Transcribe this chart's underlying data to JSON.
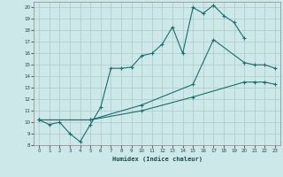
{
  "xlabel": "Humidex (Indice chaleur)",
  "xlim": [
    -0.5,
    23.5
  ],
  "ylim": [
    8,
    20.5
  ],
  "xticks": [
    0,
    1,
    2,
    3,
    4,
    5,
    6,
    7,
    8,
    9,
    10,
    11,
    12,
    13,
    14,
    15,
    16,
    17,
    18,
    19,
    20,
    21,
    22,
    23
  ],
  "yticks": [
    8,
    9,
    10,
    11,
    12,
    13,
    14,
    15,
    16,
    17,
    18,
    19,
    20
  ],
  "bg_color": "#cde8e8",
  "line_color": "#1a6e6e",
  "grid_color": "#adc8c8",
  "line1_x": [
    0,
    1,
    2,
    3,
    4,
    5,
    6,
    7,
    8,
    9,
    10,
    11,
    12,
    13,
    14,
    15,
    16,
    17,
    18,
    19,
    20
  ],
  "line1_y": [
    10.2,
    9.8,
    10.0,
    9.0,
    8.3,
    9.8,
    11.3,
    14.7,
    14.7,
    14.8,
    15.8,
    16.0,
    16.8,
    18.3,
    16.0,
    20.0,
    19.5,
    20.2,
    19.3,
    18.7,
    17.3
  ],
  "line2_x": [
    0,
    5,
    10,
    15,
    17,
    20,
    21,
    22,
    23
  ],
  "line2_y": [
    10.2,
    10.2,
    11.5,
    13.3,
    17.2,
    15.2,
    15.0,
    15.0,
    14.7
  ],
  "line3_x": [
    0,
    5,
    10,
    15,
    20,
    21,
    22,
    23
  ],
  "line3_y": [
    10.2,
    10.2,
    11.0,
    12.2,
    13.5,
    13.5,
    13.5,
    13.3
  ]
}
